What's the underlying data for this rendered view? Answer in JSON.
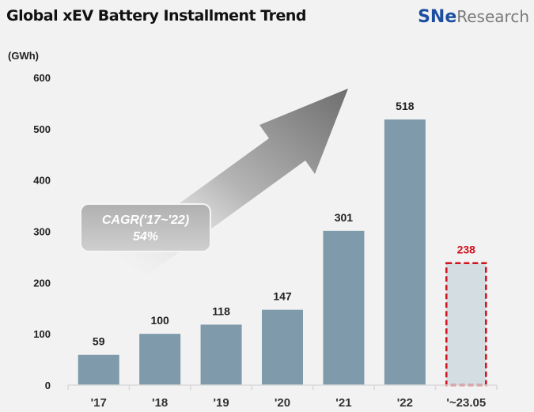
{
  "header": {
    "title": "Global xEV Battery Installment Trend",
    "logo_text": "SNe Research"
  },
  "colors": {
    "bar": "#7e9aab",
    "highlight_bar": "#d3dde2",
    "highlight_border": "#d0121b",
    "highlight_label": "#d0121b",
    "axis": "#d9d9d9"
  },
  "chart_data": {
    "type": "bar",
    "title": "Global xEV Battery Installment Trend",
    "ylabel": "(GWh)",
    "xlabel": "",
    "categories": [
      "'17",
      "'18",
      "'19",
      "'20",
      "'21",
      "'22",
      "'~23.05"
    ],
    "values": [
      59,
      100,
      118,
      147,
      301,
      518,
      238
    ],
    "highlighted": [
      "'~23.05"
    ],
    "ylim": [
      0,
      600
    ],
    "yticks": [
      0,
      100,
      200,
      300,
      400,
      500,
      600
    ],
    "grid": false,
    "annotation": {
      "line1": "CAGR('17~'22)",
      "line2": "54%"
    }
  }
}
